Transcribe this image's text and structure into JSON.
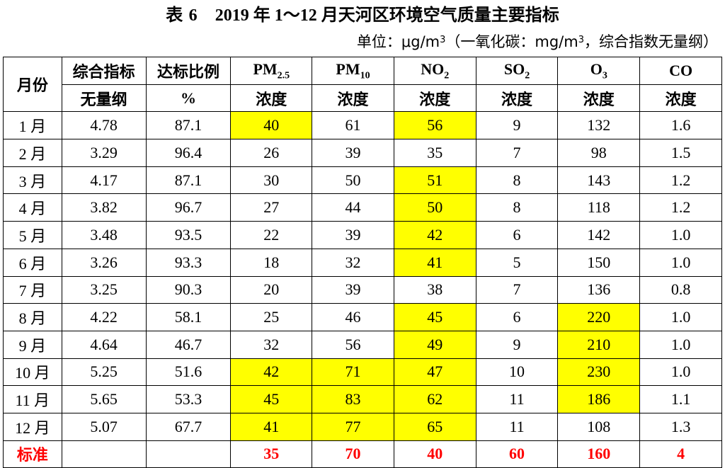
{
  "title": {
    "prefix": "表",
    "number": "6",
    "text": "2019 年 1～12 月天河区环境空气质量主要指标"
  },
  "unit_note": {
    "text_a": "单位：μg/m",
    "exp_a": "3",
    "text_b": "（一氧化碳：mg/m",
    "exp_b": "3",
    "text_c": "，综合指数无量纲）"
  },
  "header": {
    "month": "月份",
    "index": "综合指标",
    "index_unit": "无量纲",
    "ratio": "达标比例",
    "ratio_unit": "%",
    "pm25_base": "PM",
    "pm25_sub": "2.5",
    "pm10_base": "PM",
    "pm10_sub": "10",
    "no2_base": "NO",
    "no2_sub": "2",
    "so2_base": "SO",
    "so2_sub": "2",
    "o3_base": "O",
    "o3_sub": "3",
    "co": "CO",
    "conc": "浓度"
  },
  "rows": [
    {
      "month": "1 月",
      "index": "4.78",
      "ratio": "87.1",
      "pm25": "40",
      "pm10": "61",
      "no2": "56",
      "so2": "9",
      "o3": "132",
      "co": "1.6"
    },
    {
      "month": "2 月",
      "index": "3.29",
      "ratio": "96.4",
      "pm25": "26",
      "pm10": "39",
      "no2": "35",
      "so2": "7",
      "o3": "98",
      "co": "1.5"
    },
    {
      "month": "3 月",
      "index": "4.17",
      "ratio": "87.1",
      "pm25": "30",
      "pm10": "50",
      "no2": "51",
      "so2": "8",
      "o3": "143",
      "co": "1.2"
    },
    {
      "month": "4 月",
      "index": "3.82",
      "ratio": "96.7",
      "pm25": "27",
      "pm10": "44",
      "no2": "50",
      "so2": "8",
      "o3": "118",
      "co": "1.2"
    },
    {
      "month": "5 月",
      "index": "3.48",
      "ratio": "93.5",
      "pm25": "22",
      "pm10": "39",
      "no2": "42",
      "so2": "6",
      "o3": "142",
      "co": "1.0"
    },
    {
      "month": "6 月",
      "index": "3.26",
      "ratio": "93.3",
      "pm25": "18",
      "pm10": "32",
      "no2": "41",
      "so2": "5",
      "o3": "150",
      "co": "1.0"
    },
    {
      "month": "7 月",
      "index": "3.25",
      "ratio": "90.3",
      "pm25": "20",
      "pm10": "39",
      "no2": "38",
      "so2": "7",
      "o3": "136",
      "co": "0.8"
    },
    {
      "month": "8 月",
      "index": "4.22",
      "ratio": "58.1",
      "pm25": "25",
      "pm10": "46",
      "no2": "45",
      "so2": "6",
      "o3": "220",
      "co": "1.0"
    },
    {
      "month": "9 月",
      "index": "4.64",
      "ratio": "46.7",
      "pm25": "32",
      "pm10": "56",
      "no2": "49",
      "so2": "9",
      "o3": "210",
      "co": "1.0"
    },
    {
      "month": "10 月",
      "index": "5.25",
      "ratio": "51.6",
      "pm25": "42",
      "pm10": "71",
      "no2": "47",
      "so2": "10",
      "o3": "230",
      "co": "1.0"
    },
    {
      "month": "11 月",
      "index": "5.65",
      "ratio": "53.3",
      "pm25": "45",
      "pm10": "83",
      "no2": "62",
      "so2": "11",
      "o3": "186",
      "co": "1.1"
    },
    {
      "month": "12 月",
      "index": "5.07",
      "ratio": "67.7",
      "pm25": "41",
      "pm10": "77",
      "no2": "65",
      "so2": "11",
      "o3": "108",
      "co": "1.3"
    }
  ],
  "standard": {
    "label": "标准",
    "pm25": "35",
    "pm10": "70",
    "no2": "40",
    "so2": "60",
    "o3": "160",
    "co": "4"
  },
  "colors": {
    "highlight": "#ffff00",
    "standard_text": "#ff0000"
  }
}
